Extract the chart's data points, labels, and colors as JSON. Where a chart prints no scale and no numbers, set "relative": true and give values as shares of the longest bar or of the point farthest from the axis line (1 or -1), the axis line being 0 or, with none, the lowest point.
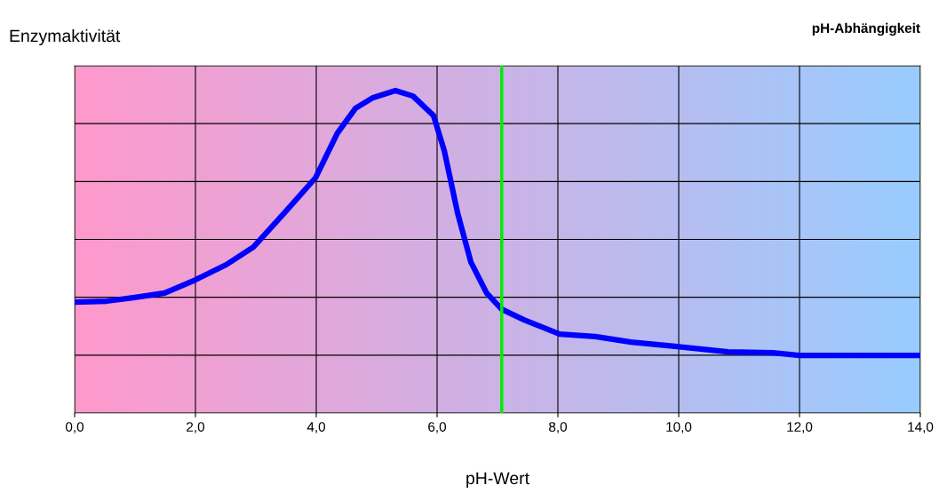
{
  "chart_data": {
    "type": "line",
    "title": "pH-Abhängigkeit",
    "xlabel": "pH-Wert",
    "ylabel": "Enzymaktivität",
    "relative": true,
    "x": [
      0,
      0.53,
      0.97,
      1.49,
      2.0,
      2.51,
      2.96,
      3.47,
      3.99,
      4.35,
      4.65,
      4.94,
      5.31,
      5.6,
      5.94,
      6.12,
      6.34,
      6.56,
      6.82,
      7.07,
      7.44,
      8.03,
      8.62,
      9.21,
      9.94,
      10.82,
      11.56,
      12.0,
      12.88,
      14.0
    ],
    "series": [
      {
        "color": "#0000ff",
        "values": [
          0.344,
          0.347,
          0.358,
          0.372,
          0.413,
          0.46,
          0.515,
          0.62,
          0.73,
          0.868,
          0.945,
          0.978,
          1.0,
          0.983,
          0.923,
          0.813,
          0.62,
          0.468,
          0.372,
          0.322,
          0.289,
          0.245,
          0.237,
          0.22,
          0.207,
          0.19,
          0.187,
          0.179,
          0.179,
          0.179
        ]
      }
    ],
    "xlim": [
      0,
      14
    ],
    "xticks": [
      {
        "value": 0,
        "label": "0,0"
      },
      {
        "value": 2,
        "label": "2,0"
      },
      {
        "value": 4,
        "label": "4,0"
      },
      {
        "value": 6,
        "label": "6,0"
      },
      {
        "value": 8,
        "label": "8,0"
      },
      {
        "value": 10,
        "label": "10,0"
      },
      {
        "value": 12,
        "label": "12,0"
      },
      {
        "value": 14,
        "label": "14,0"
      }
    ],
    "ref_lines": [
      {
        "axis": "x",
        "value": 7.07,
        "color": "#00ee00"
      }
    ],
    "grid": true,
    "marker": "none",
    "line_style": "solid"
  }
}
